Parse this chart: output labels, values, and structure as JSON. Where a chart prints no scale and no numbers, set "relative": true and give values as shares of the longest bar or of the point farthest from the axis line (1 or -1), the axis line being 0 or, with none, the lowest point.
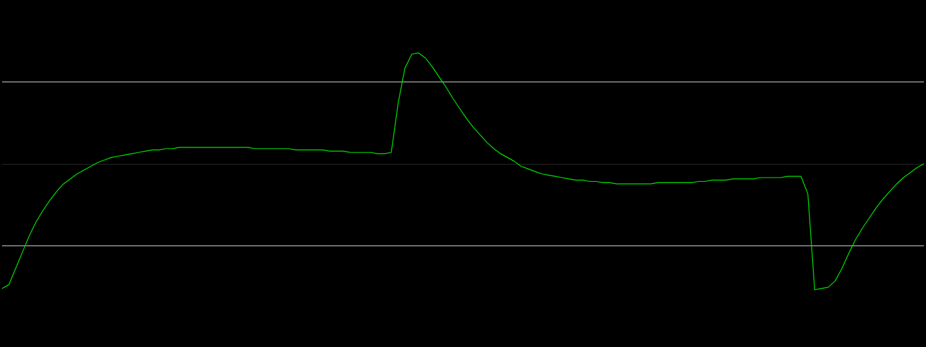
{
  "chart_data": {
    "type": "line",
    "relative": true,
    "grid": false,
    "legend": false,
    "marker": "none",
    "line_style": "solid",
    "categories": [
      null,
      null,
      null,
      null,
      null,
      null,
      null,
      null,
      null,
      null,
      null,
      null,
      null,
      null,
      null,
      null,
      null,
      null,
      null,
      null,
      null,
      null,
      null,
      null,
      null,
      null,
      null,
      null,
      null,
      null,
      null,
      null,
      null,
      null,
      null,
      null,
      null,
      null,
      null,
      null,
      null,
      null,
      null,
      null,
      null,
      null,
      null,
      null,
      null,
      null,
      null,
      null,
      null,
      null,
      null,
      null,
      null,
      null,
      null,
      null,
      null,
      null,
      null,
      null,
      null,
      null,
      null,
      null,
      null,
      null,
      null,
      null,
      null,
      null,
      null,
      null,
      null,
      null,
      null,
      null,
      null,
      null,
      null,
      null,
      null,
      null,
      null,
      null,
      null,
      null,
      null,
      null,
      null,
      null,
      null,
      null,
      null,
      null,
      null,
      null,
      null,
      null,
      null,
      null,
      null,
      null,
      null,
      null,
      null,
      null,
      null,
      null,
      null,
      null,
      null,
      null,
      null,
      null,
      null,
      null,
      null,
      null,
      null,
      null,
      null,
      null,
      null,
      null,
      null,
      null,
      null,
      null,
      null,
      null,
      null,
      null
    ],
    "series": [
      {
        "color": "#00e600",
        "values": [
          -0.99,
          -0.96,
          -0.83,
          -0.7,
          -0.57,
          -0.46,
          -0.37,
          -0.29,
          -0.22,
          -0.16,
          -0.12,
          -0.08,
          -0.05,
          -0.02,
          0.01,
          0.03,
          0.05,
          0.06,
          0.07,
          0.08,
          0.09,
          0.1,
          0.11,
          0.11,
          0.12,
          0.12,
          0.13,
          0.13,
          0.13,
          0.13,
          0.13,
          0.13,
          0.13,
          0.13,
          0.13,
          0.13,
          0.13,
          0.12,
          0.12,
          0.12,
          0.12,
          0.12,
          0.12,
          0.11,
          0.11,
          0.11,
          0.11,
          0.11,
          0.1,
          0.1,
          0.1,
          0.09,
          0.09,
          0.09,
          0.09,
          0.08,
          0.08,
          0.09,
          0.48,
          0.76,
          0.87,
          0.88,
          0.84,
          0.77,
          0.69,
          0.61,
          0.52,
          0.44,
          0.36,
          0.29,
          0.23,
          0.17,
          0.12,
          0.08,
          0.05,
          0.02,
          -0.02,
          -0.04,
          -0.06,
          -0.08,
          -0.09,
          -0.1,
          -0.11,
          -0.12,
          -0.13,
          -0.13,
          -0.14,
          -0.14,
          -0.15,
          -0.15,
          -0.16,
          -0.16,
          -0.16,
          -0.16,
          -0.16,
          -0.16,
          -0.15,
          -0.15,
          -0.15,
          -0.15,
          -0.15,
          -0.15,
          -0.14,
          -0.14,
          -0.13,
          -0.13,
          -0.13,
          -0.12,
          -0.12,
          -0.12,
          -0.12,
          -0.11,
          -0.11,
          -0.11,
          -0.11,
          -0.1,
          -0.1,
          -0.1,
          -0.24,
          -1,
          -0.99,
          -0.98,
          -0.93,
          -0.83,
          -0.71,
          -0.6,
          -0.51,
          -0.43,
          -0.35,
          -0.28,
          -0.22,
          -0.16,
          -0.11,
          -0.07,
          -0.03,
          0
        ]
      }
    ],
    "ref_lines": [
      {
        "axis": "y",
        "value": 0.65,
        "color": "#d0d0d0"
      },
      {
        "axis": "y",
        "value": 0,
        "color": "#262626"
      },
      {
        "axis": "y",
        "value": -0.65,
        "color": "#d0d0d0"
      }
    ]
  }
}
